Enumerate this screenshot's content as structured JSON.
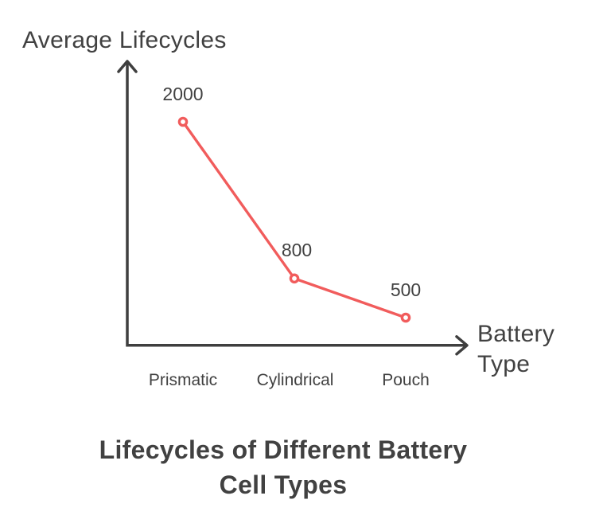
{
  "labels": {
    "y_axis": "Average Lifecycles",
    "x_axis_line1": "Battery",
    "x_axis_line2": "Type",
    "title_line1": "Lifecycles of Different Battery",
    "title_line2": "Cell Types"
  },
  "chart_data": {
    "type": "line",
    "title": "Lifecycles of Different Battery Cell Types",
    "xlabel": "Battery Type",
    "ylabel": "Average Lifecycles",
    "categories": [
      "Prismatic",
      "Cylindrical",
      "Pouch"
    ],
    "values": [
      2000,
      800,
      500
    ],
    "data_labels": [
      "2000",
      "800",
      "500"
    ],
    "grid": false,
    "legend": false,
    "line_color": "#f15c5c",
    "marker": "open-circle",
    "marker_fill": "#ffffff",
    "axis_color": "#3f3f3f",
    "text_color": "#414141",
    "background_color": "#ffffff"
  }
}
